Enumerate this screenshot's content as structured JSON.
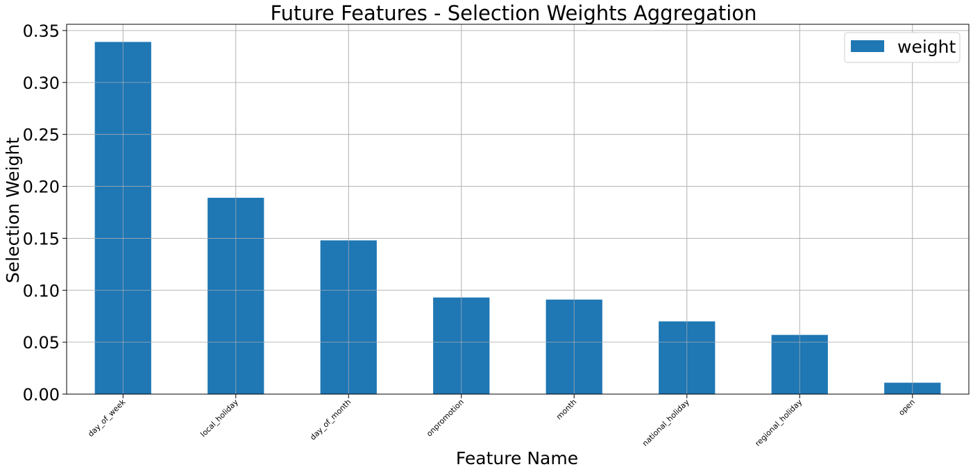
{
  "chart_data": {
    "type": "bar",
    "title": "Future Features - Selection Weights Aggregation",
    "xlabel": "Feature Name",
    "ylabel": "Selection Weight",
    "categories": [
      "day_of_week",
      "local_holiday",
      "day_of_month",
      "onpromotion",
      "month",
      "national_holiday",
      "regional_holiday",
      "open"
    ],
    "series": [
      {
        "name": "weight",
        "values": [
          0.339,
          0.189,
          0.148,
          0.093,
          0.091,
          0.07,
          0.057,
          0.011
        ]
      }
    ],
    "ylim": [
      0,
      0.356
    ],
    "yticks": [
      0.0,
      0.05,
      0.1,
      0.15,
      0.2,
      0.25,
      0.3,
      0.35
    ],
    "ytick_labels": [
      "0.00",
      "0.05",
      "0.10",
      "0.15",
      "0.20",
      "0.25",
      "0.30",
      "0.35"
    ],
    "xtick_rotation_deg": -45,
    "grid": true,
    "legend_position": "top-right",
    "colors": {
      "bar": "#1f77b4",
      "grid": "#b0b0b0",
      "axis": "#000000"
    }
  }
}
